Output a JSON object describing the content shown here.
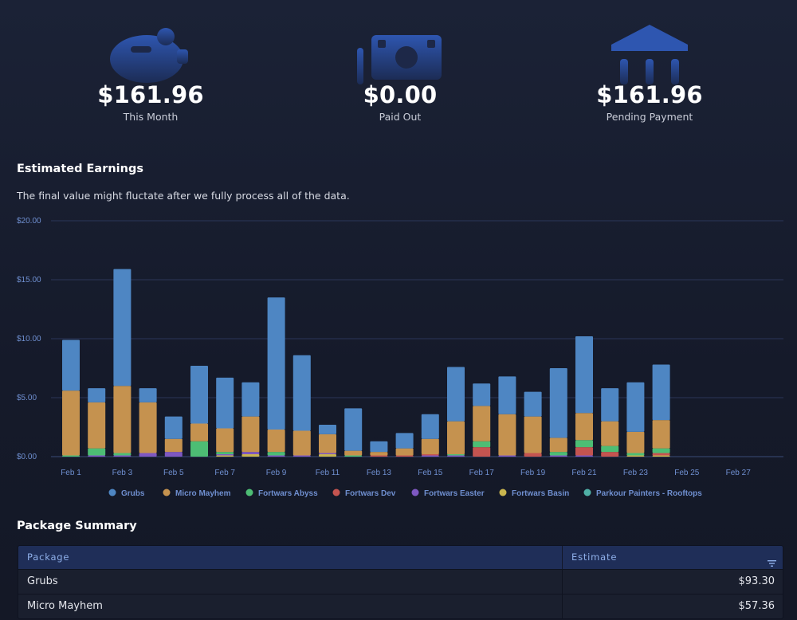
{
  "stats": [
    {
      "icon": "piggy-bank-icon",
      "value": "$161.96",
      "label": "This Month"
    },
    {
      "icon": "cash-icon",
      "value": "$0.00",
      "label": "Paid Out"
    },
    {
      "icon": "bank-icon",
      "value": "$161.96",
      "label": "Pending Payment"
    }
  ],
  "earnings": {
    "title": "Estimated Earnings",
    "subtitle": "The final value might fluctate after we fully process all of the data."
  },
  "chart_data": {
    "type": "bar",
    "stacked": true,
    "y_ticks": [
      "$0.00",
      "$5.00",
      "$10.00",
      "$15.00",
      "$20.00"
    ],
    "ylim": [
      0,
      20
    ],
    "x_ticks": [
      "Feb 1",
      "Feb 3",
      "Feb 5",
      "Feb 7",
      "Feb 9",
      "Feb 11",
      "Feb 13",
      "Feb 15",
      "Feb 17",
      "Feb 19",
      "Feb 21",
      "Feb 23",
      "Feb 25",
      "Feb 27"
    ],
    "categories": [
      "Feb 1",
      "Feb 2",
      "Feb 3",
      "Feb 4",
      "Feb 5",
      "Feb 6",
      "Feb 7",
      "Feb 8",
      "Feb 9",
      "Feb 10",
      "Feb 11",
      "Feb 12",
      "Feb 13",
      "Feb 14",
      "Feb 15",
      "Feb 16",
      "Feb 17",
      "Feb 18",
      "Feb 19",
      "Feb 20",
      "Feb 21",
      "Feb 22",
      "Feb 23",
      "Feb 24",
      "Feb 25",
      "Feb 26",
      "Feb 27",
      "Feb 28"
    ],
    "series": [
      {
        "name": "Grubs",
        "color": "#4e86c3",
        "values": [
          4.3,
          1.2,
          9.9,
          1.2,
          1.9,
          4.9,
          4.3,
          2.9,
          11.2,
          6.4,
          0.8,
          3.6,
          0.9,
          1.3,
          2.1,
          4.6,
          1.9,
          3.2,
          2.1,
          5.9,
          6.5,
          2.8,
          4.2,
          4.7,
          0,
          0,
          0,
          0
        ]
      },
      {
        "name": "Micro Mayhem",
        "color": "#c5924f",
        "values": [
          5.5,
          3.9,
          5.7,
          4.3,
          1.1,
          1.5,
          2.0,
          3.0,
          1.9,
          2.1,
          1.6,
          0.4,
          0.3,
          0.6,
          1.3,
          2.8,
          3.0,
          3.5,
          3.1,
          1.2,
          2.3,
          2.1,
          1.8,
          2.4,
          0,
          0,
          0,
          0
        ]
      },
      {
        "name": "Fortwars Abyss",
        "color": "#4dbd74",
        "values": [
          0.1,
          0.6,
          0.2,
          0,
          0,
          1.3,
          0.2,
          0,
          0.3,
          0,
          0,
          0.1,
          0,
          0,
          0,
          0.1,
          0.5,
          0,
          0,
          0.3,
          0.6,
          0.5,
          0.2,
          0.4,
          0,
          0,
          0,
          0
        ]
      },
      {
        "name": "Fortwars Dev",
        "color": "#c45450",
        "values": [
          0,
          0,
          0,
          0,
          0,
          0,
          0,
          0,
          0,
          0,
          0,
          0,
          0.1,
          0.1,
          0.1,
          0,
          0.8,
          0,
          0.3,
          0,
          0.7,
          0.4,
          0,
          0.2,
          0,
          0,
          0,
          0
        ]
      },
      {
        "name": "Fortwars Easter",
        "color": "#7e58c2",
        "values": [
          0,
          0.1,
          0.1,
          0.3,
          0.4,
          0,
          0.1,
          0.2,
          0.1,
          0.1,
          0.1,
          0,
          0,
          0,
          0.1,
          0.1,
          0,
          0.1,
          0,
          0.1,
          0.1,
          0,
          0,
          0,
          0,
          0,
          0,
          0
        ]
      },
      {
        "name": "Fortwars Basin",
        "color": "#c9b54e",
        "values": [
          0,
          0,
          0,
          0,
          0,
          0,
          0.1,
          0.2,
          0,
          0,
          0.2,
          0,
          0,
          0,
          0,
          0,
          0,
          0,
          0,
          0,
          0,
          0,
          0.1,
          0.1,
          0,
          0,
          0,
          0
        ]
      },
      {
        "name": "Parkour Painters - Rooftops",
        "color": "#4fb0a6",
        "values": [
          0,
          0,
          0,
          0,
          0,
          0,
          0,
          0,
          0,
          0,
          0,
          0,
          0,
          0,
          0,
          0,
          0,
          0,
          0,
          0,
          0,
          0,
          0,
          0,
          0,
          0,
          0,
          0
        ]
      }
    ],
    "legend_position": "bottom",
    "grid": true
  },
  "summary": {
    "title": "Package Summary",
    "columns": [
      "Package",
      "Estimate"
    ],
    "rows": [
      {
        "package": "Grubs",
        "estimate": "$93.30"
      },
      {
        "package": "Micro Mayhem",
        "estimate": "$57.36"
      }
    ]
  }
}
